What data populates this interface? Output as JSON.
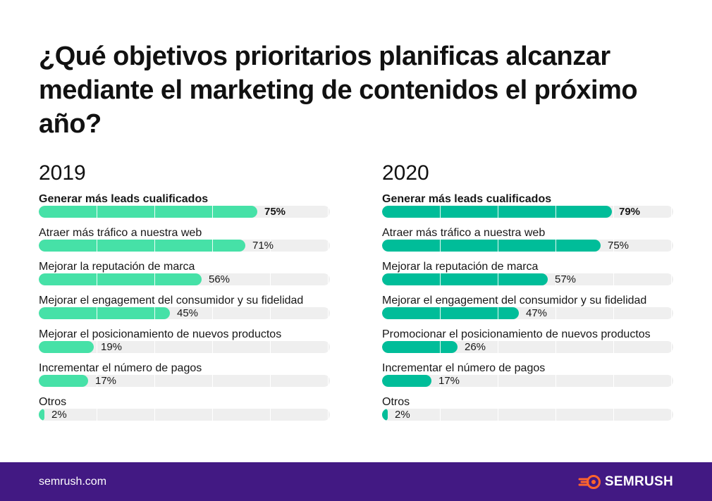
{
  "title": "¿Qué objetivos prioritarios planificas alcanzar mediante el marketing de contenidos el próximo año?",
  "colors": {
    "bar_2019": "#46e1a7",
    "bar_2020": "#00bd99",
    "track": "#efefef",
    "footer_bg": "#421983",
    "logo_accent": "#ff642d"
  },
  "chart_data": [
    {
      "type": "bar",
      "orientation": "horizontal",
      "title": "2019",
      "xlim": [
        0,
        100
      ],
      "categories": [
        "Generar más leads cualificados",
        "Atraer más tráfico a nuestra web",
        "Mejorar la reputación de marca",
        "Mejorar el engagement del consumidor y su fidelidad",
        "Mejorar el posicionamiento de nuevos productos",
        "Incrementar el número de pagos",
        "Otros"
      ],
      "values": [
        75,
        71,
        56,
        45,
        19,
        17,
        2
      ],
      "labels": [
        "75%",
        "71%",
        "56%",
        "45%",
        "19%",
        "17%",
        "2%"
      ]
    },
    {
      "type": "bar",
      "orientation": "horizontal",
      "title": "2020",
      "xlim": [
        0,
        100
      ],
      "categories": [
        "Generar más leads cualificados",
        "Atraer más tráfico a nuestra web",
        "Mejorar la reputación de marca",
        "Mejorar el engagement del consumidor y su fidelidad",
        "Promocionar el posicionamiento de nuevos productos",
        "Incrementar el número de pagos",
        "Otros"
      ],
      "values": [
        79,
        75,
        57,
        47,
        26,
        17,
        2
      ],
      "labels": [
        "79%",
        "75%",
        "57%",
        "47%",
        "26%",
        "17%",
        "2%"
      ]
    }
  ],
  "footer": {
    "url": "semrush.com",
    "brand": "SEMRUSH",
    "logo_icon": "semrush-fireball-icon"
  }
}
